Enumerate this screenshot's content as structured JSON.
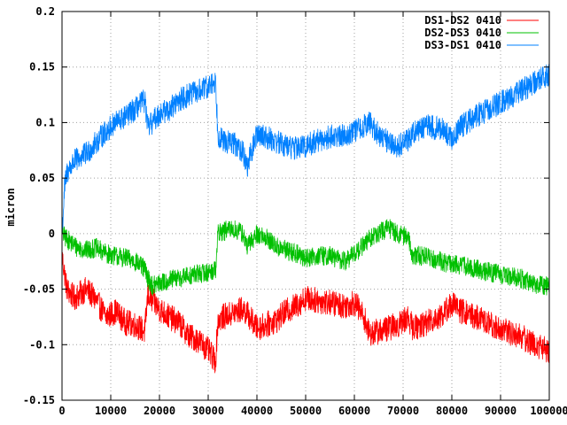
{
  "chart_data": {
    "type": "line",
    "title": "",
    "xlabel": "",
    "ylabel": "micron",
    "xlim": [
      0,
      100000
    ],
    "ylim": [
      -0.15,
      0.2
    ],
    "x_ticks": [
      "0",
      "10000",
      "20000",
      "30000",
      "40000",
      "50000",
      "60000",
      "70000",
      "80000",
      "90000",
      "100000"
    ],
    "y_ticks": [
      "-0.15",
      "-0.1",
      "-0.05",
      "0",
      "0.05",
      "0.1",
      "0.15",
      "0.2"
    ],
    "x_tick_values": [
      0,
      10000,
      20000,
      30000,
      40000,
      50000,
      60000,
      70000,
      80000,
      90000,
      100000
    ],
    "y_tick_values": [
      -0.15,
      -0.1,
      -0.05,
      0,
      0.05,
      0.1,
      0.15,
      0.2
    ],
    "grid": true,
    "legend_position": "top-right",
    "series": [
      {
        "name": "DS1-DS2 0410",
        "color": "#ff0000",
        "noise": 0.012,
        "x": [
          0,
          1000,
          2500,
          5000,
          7000,
          9000,
          11000,
          13000,
          15000,
          17000,
          17600,
          18500,
          20000,
          22000,
          24000,
          26000,
          28000,
          30000,
          31500,
          32000,
          33000,
          35000,
          37000,
          38000,
          40000,
          42000,
          44000,
          46000,
          48000,
          50000,
          52000,
          55000,
          58000,
          60000,
          62000,
          63000,
          65000,
          67000,
          69000,
          71000,
          72000,
          75000,
          78000,
          80000,
          82000,
          85000,
          88000,
          91000,
          94000,
          97000,
          100000
        ],
        "y": [
          -0.02,
          -0.05,
          -0.058,
          -0.05,
          -0.06,
          -0.075,
          -0.07,
          -0.08,
          -0.082,
          -0.088,
          -0.055,
          -0.06,
          -0.068,
          -0.075,
          -0.08,
          -0.092,
          -0.096,
          -0.105,
          -0.115,
          -0.078,
          -0.075,
          -0.072,
          -0.068,
          -0.072,
          -0.085,
          -0.082,
          -0.078,
          -0.07,
          -0.065,
          -0.058,
          -0.06,
          -0.062,
          -0.065,
          -0.062,
          -0.075,
          -0.09,
          -0.088,
          -0.085,
          -0.082,
          -0.075,
          -0.085,
          -0.08,
          -0.073,
          -0.063,
          -0.07,
          -0.075,
          -0.082,
          -0.088,
          -0.092,
          -0.1,
          -0.105
        ]
      },
      {
        "name": "DS2-DS3 0410",
        "color": "#00c000",
        "noise": 0.009,
        "x": [
          0,
          1000,
          3000,
          5000,
          7000,
          9000,
          11000,
          13000,
          15000,
          17000,
          17600,
          18500,
          20000,
          22000,
          24000,
          26000,
          28000,
          30000,
          31500,
          32000,
          33000,
          35000,
          37000,
          38000,
          40000,
          42000,
          44000,
          46000,
          48000,
          50000,
          52000,
          55000,
          58000,
          60000,
          62000,
          63000,
          65000,
          67000,
          69000,
          71000,
          72000,
          75000,
          78000,
          80000,
          82000,
          85000,
          88000,
          91000,
          94000,
          97000,
          100000
        ],
        "y": [
          0.0,
          -0.005,
          -0.012,
          -0.015,
          -0.013,
          -0.018,
          -0.02,
          -0.022,
          -0.025,
          -0.032,
          -0.04,
          -0.047,
          -0.045,
          -0.042,
          -0.04,
          -0.038,
          -0.036,
          -0.035,
          -0.032,
          0.0,
          0.002,
          0.004,
          0.001,
          -0.012,
          0.0,
          -0.004,
          -0.012,
          -0.015,
          -0.018,
          -0.022,
          -0.02,
          -0.02,
          -0.025,
          -0.018,
          -0.01,
          -0.005,
          0.0,
          0.005,
          0.0,
          -0.003,
          -0.02,
          -0.02,
          -0.025,
          -0.028,
          -0.028,
          -0.032,
          -0.035,
          -0.038,
          -0.04,
          -0.045,
          -0.048
        ]
      },
      {
        "name": "DS3-DS1 0410",
        "color": "#0080ff",
        "noise": 0.011,
        "x": [
          0,
          500,
          1000,
          2500,
          5000,
          7000,
          9000,
          11000,
          13000,
          15000,
          17000,
          17600,
          18500,
          20000,
          22000,
          24000,
          26000,
          28000,
          30000,
          31500,
          32000,
          33000,
          35000,
          37000,
          38000,
          40000,
          42000,
          44000,
          46000,
          48000,
          50000,
          52000,
          55000,
          58000,
          60000,
          62000,
          63000,
          65000,
          67000,
          69000,
          71000,
          72000,
          75000,
          78000,
          80000,
          82000,
          85000,
          88000,
          91000,
          94000,
          97000,
          100000
        ],
        "y": [
          0.0,
          0.04,
          0.055,
          0.065,
          0.072,
          0.082,
          0.092,
          0.1,
          0.105,
          0.112,
          0.12,
          0.095,
          0.1,
          0.108,
          0.112,
          0.12,
          0.125,
          0.128,
          0.132,
          0.138,
          0.09,
          0.083,
          0.082,
          0.075,
          0.06,
          0.09,
          0.087,
          0.083,
          0.079,
          0.077,
          0.079,
          0.083,
          0.087,
          0.089,
          0.092,
          0.097,
          0.1,
          0.089,
          0.083,
          0.079,
          0.084,
          0.092,
          0.097,
          0.094,
          0.085,
          0.097,
          0.106,
          0.113,
          0.12,
          0.128,
          0.136,
          0.143
        ]
      }
    ]
  }
}
